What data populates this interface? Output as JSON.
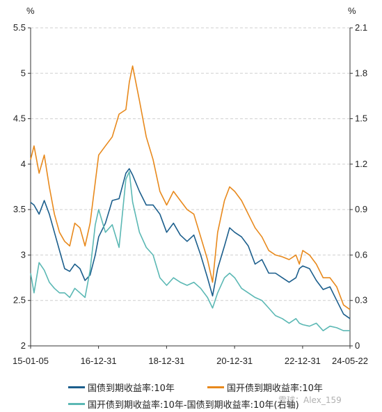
{
  "chart_data": {
    "type": "line",
    "x_ticks": [
      "15-01-05",
      "16-12-31",
      "18-12-31",
      "20-12-31",
      "22-12-31",
      "24-05-22"
    ],
    "y_left": {
      "label": "%",
      "ticks": [
        "2",
        "2.5",
        "3",
        "3.5",
        "4",
        "4.5",
        "5",
        "5.5"
      ],
      "ylim": [
        2,
        5.5
      ]
    },
    "y_right": {
      "label": "%",
      "ticks": [
        "0",
        "0.3",
        "0.6",
        "0.9",
        "1.2",
        "1.5",
        "1.8",
        "2.1"
      ],
      "ylim": [
        0,
        2.1
      ]
    },
    "grid": "horizontal dashed",
    "legend_position": "bottom",
    "series": [
      {
        "name": "国债到期收益率:10年",
        "axis": "left",
        "color": "#1b5e8c",
        "x": [
          2015.0,
          2015.1,
          2015.25,
          2015.4,
          2015.55,
          2015.7,
          2015.85,
          2016.0,
          2016.15,
          2016.3,
          2016.45,
          2016.6,
          2016.75,
          2016.9,
          2017.0,
          2017.2,
          2017.4,
          2017.6,
          2017.8,
          2017.9,
          2018.0,
          2018.2,
          2018.4,
          2018.6,
          2018.8,
          2019.0,
          2019.2,
          2019.4,
          2019.6,
          2019.8,
          2020.0,
          2020.2,
          2020.35,
          2020.5,
          2020.7,
          2020.85,
          2021.0,
          2021.2,
          2021.4,
          2021.6,
          2021.8,
          2022.0,
          2022.2,
          2022.4,
          2022.6,
          2022.8,
          2022.9,
          2023.0,
          2023.2,
          2023.4,
          2023.6,
          2023.8,
          2024.0,
          2024.2,
          2024.39
        ],
        "values": [
          3.58,
          3.55,
          3.45,
          3.6,
          3.45,
          3.25,
          3.05,
          2.85,
          2.82,
          2.9,
          2.85,
          2.72,
          2.78,
          3.0,
          3.2,
          3.35,
          3.6,
          3.62,
          3.9,
          3.95,
          3.88,
          3.7,
          3.55,
          3.55,
          3.45,
          3.25,
          3.35,
          3.22,
          3.15,
          3.22,
          3.0,
          2.75,
          2.55,
          2.85,
          3.1,
          3.3,
          3.25,
          3.2,
          3.1,
          2.9,
          2.95,
          2.8,
          2.8,
          2.75,
          2.7,
          2.75,
          2.85,
          2.88,
          2.85,
          2.72,
          2.62,
          2.65,
          2.5,
          2.35,
          2.3
        ]
      },
      {
        "name": "国开债到期收益率:10年",
        "axis": "left",
        "color": "#e8891c",
        "x": [
          2015.0,
          2015.1,
          2015.25,
          2015.4,
          2015.55,
          2015.7,
          2015.85,
          2016.0,
          2016.15,
          2016.3,
          2016.45,
          2016.6,
          2016.75,
          2016.9,
          2017.0,
          2017.2,
          2017.4,
          2017.6,
          2017.8,
          2017.9,
          2018.0,
          2018.2,
          2018.4,
          2018.6,
          2018.8,
          2019.0,
          2019.2,
          2019.4,
          2019.6,
          2019.8,
          2020.0,
          2020.2,
          2020.35,
          2020.5,
          2020.7,
          2020.85,
          2021.0,
          2021.2,
          2021.4,
          2021.6,
          2021.8,
          2022.0,
          2022.2,
          2022.4,
          2022.6,
          2022.8,
          2022.9,
          2023.0,
          2023.2,
          2023.4,
          2023.6,
          2023.8,
          2024.0,
          2024.2,
          2024.39
        ],
        "values": [
          4.05,
          4.2,
          3.9,
          4.1,
          3.75,
          3.45,
          3.25,
          3.15,
          3.1,
          3.35,
          3.3,
          3.1,
          3.35,
          3.8,
          4.1,
          4.2,
          4.3,
          4.55,
          4.6,
          4.9,
          5.08,
          4.7,
          4.3,
          4.05,
          3.7,
          3.55,
          3.7,
          3.6,
          3.5,
          3.45,
          3.2,
          2.95,
          2.7,
          3.25,
          3.6,
          3.75,
          3.7,
          3.6,
          3.45,
          3.3,
          3.2,
          3.05,
          3.0,
          2.98,
          2.95,
          3.0,
          2.9,
          3.05,
          3.0,
          2.9,
          2.75,
          2.75,
          2.65,
          2.45,
          2.4
        ]
      },
      {
        "name": "国开债到期收益率:10年-国债到期收益率:10年(右轴)",
        "axis": "right",
        "color": "#5bb8b4",
        "x": [
          2015.0,
          2015.1,
          2015.25,
          2015.4,
          2015.55,
          2015.7,
          2015.85,
          2016.0,
          2016.15,
          2016.3,
          2016.45,
          2016.6,
          2016.75,
          2016.9,
          2017.0,
          2017.2,
          2017.4,
          2017.6,
          2017.8,
          2017.9,
          2018.0,
          2018.2,
          2018.4,
          2018.6,
          2018.8,
          2019.0,
          2019.2,
          2019.4,
          2019.6,
          2019.8,
          2020.0,
          2020.2,
          2020.35,
          2020.5,
          2020.7,
          2020.85,
          2021.0,
          2021.2,
          2021.4,
          2021.6,
          2021.8,
          2022.0,
          2022.2,
          2022.4,
          2022.6,
          2022.8,
          2022.9,
          2023.0,
          2023.2,
          2023.4,
          2023.6,
          2023.8,
          2024.0,
          2024.2,
          2024.39
        ],
        "values": [
          0.48,
          0.35,
          0.55,
          0.5,
          0.42,
          0.38,
          0.35,
          0.35,
          0.32,
          0.38,
          0.35,
          0.32,
          0.5,
          0.8,
          0.9,
          0.75,
          0.8,
          0.65,
          1.1,
          1.15,
          0.95,
          0.75,
          0.65,
          0.6,
          0.45,
          0.4,
          0.45,
          0.42,
          0.4,
          0.42,
          0.38,
          0.32,
          0.25,
          0.35,
          0.45,
          0.48,
          0.45,
          0.38,
          0.35,
          0.32,
          0.3,
          0.25,
          0.2,
          0.18,
          0.15,
          0.18,
          0.15,
          0.14,
          0.13,
          0.15,
          0.1,
          0.13,
          0.12,
          0.1,
          0.1
        ]
      }
    ],
    "x_range": [
      2015.0,
      2024.39
    ],
    "x_tick_positions": [
      2015.0,
      2016.997,
      2018.997,
      2020.997,
      2022.997,
      2024.39
    ]
  },
  "legend": {
    "items": [
      {
        "label": "国债到期收益率:10年",
        "color": "#1b5e8c"
      },
      {
        "label": "国开债到期收益率:10年",
        "color": "#e8891c"
      },
      {
        "label": "国开债到期收益率:10年-国债到期收益率:10年(右轴)",
        "color": "#5bb8b4"
      }
    ]
  },
  "watermark": "雪球：Alex_159"
}
